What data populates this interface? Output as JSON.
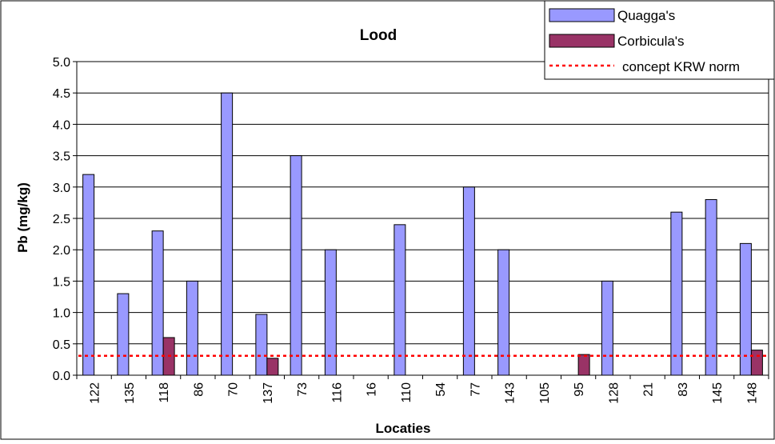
{
  "chart_data": {
    "type": "bar",
    "title": "Lood",
    "xlabel": "Locaties",
    "ylabel": "Pb (mg/kg)",
    "ylim": [
      0,
      5
    ],
    "yticks": [
      "0.0",
      "0.5",
      "1.0",
      "1.5",
      "2.0",
      "2.5",
      "3.0",
      "3.5",
      "4.0",
      "4.5",
      "5.0"
    ],
    "grid": true,
    "legend_position": "top-right",
    "categories": [
      "122",
      "135",
      "118",
      "86",
      "70",
      "137",
      "73",
      "116",
      "16",
      "110",
      "54",
      "77",
      "143",
      "105",
      "95",
      "128",
      "21",
      "83",
      "145",
      "148"
    ],
    "series": [
      {
        "name": "Quagga's",
        "color": "#9999ff",
        "values": [
          3.2,
          1.3,
          2.3,
          1.5,
          4.5,
          0.97,
          3.5,
          2.0,
          null,
          2.4,
          null,
          3.0,
          2.0,
          null,
          null,
          1.5,
          null,
          2.6,
          2.8,
          2.1
        ]
      },
      {
        "name": "Corbicula's",
        "color": "#993366",
        "values": [
          null,
          null,
          0.6,
          null,
          null,
          0.27,
          null,
          null,
          null,
          null,
          null,
          null,
          null,
          null,
          0.33,
          null,
          null,
          null,
          null,
          0.4
        ]
      }
    ],
    "reference_line": {
      "name": "concept KRW norm",
      "value": 0.31,
      "color": "#ff0000"
    }
  }
}
